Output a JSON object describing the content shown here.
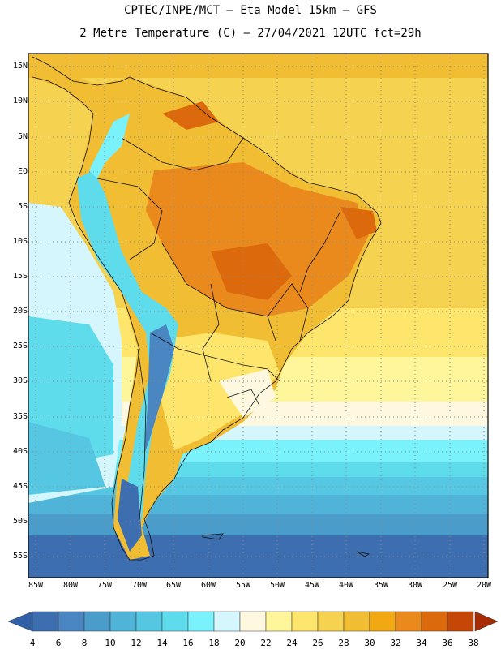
{
  "header": {
    "line1": "CPTEC/INPE/MCT –  Eta Model 15km – GFS",
    "line2": "2 Metre Temperature (C) – 27/04/2021 12UTC fct=29h"
  },
  "axes": {
    "lat_labels": [
      "15N",
      "10N",
      "5N",
      "EQ",
      "5S",
      "10S",
      "15S",
      "20S",
      "25S",
      "30S",
      "35S",
      "40S",
      "45S",
      "50S",
      "55S"
    ],
    "lon_labels": [
      "85W",
      "80W",
      "75W",
      "70W",
      "65W",
      "60W",
      "55W",
      "50W",
      "45W",
      "40W",
      "35W",
      "30W",
      "25W",
      "20W"
    ]
  },
  "colorbar": {
    "labels": [
      "4",
      "6",
      "8",
      "10",
      "12",
      "14",
      "16",
      "18",
      "20",
      "22",
      "24",
      "26",
      "28",
      "30",
      "32",
      "34",
      "36",
      "38"
    ],
    "colors": [
      "#3d6fb0",
      "#4a86c2",
      "#4a9dcb",
      "#4fb4d8",
      "#56c7e2",
      "#5fdcec",
      "#7af2fb",
      "#d4f6fc",
      "#fff8e0",
      "#fff59b",
      "#fde66b",
      "#f6d251",
      "#f0bd33",
      "#f2a813",
      "#ea8a1d",
      "#dc6a0c",
      "#c44707",
      "#a82c03"
    ]
  }
}
